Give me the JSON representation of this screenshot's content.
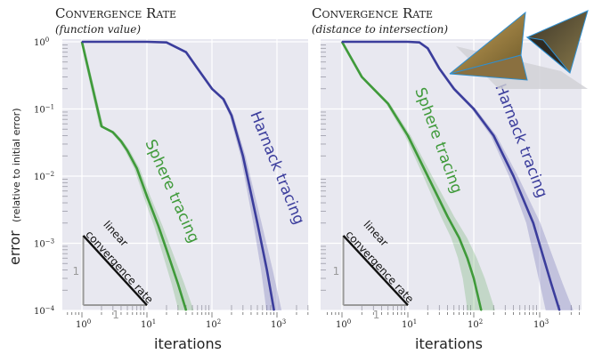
{
  "colors": {
    "background": "#e8e8f0",
    "grid": "#ffffff",
    "harnack": "#3b3d9c",
    "sphere": "#3f9a3a",
    "triangle_side": "#9a9a9a",
    "triangle_hyp": "#111111"
  },
  "ylabel_main": "error",
  "ylabel_sub": "(relative to initial error)",
  "xlabel": "iterations",
  "triangle": {
    "rate_line1": "linear",
    "rate_line2": "convergence rate",
    "side_label": "1"
  },
  "x_ticks": [
    {
      "base": "10",
      "exp": "0"
    },
    {
      "base": "10",
      "exp": "1"
    },
    {
      "base": "10",
      "exp": "2"
    },
    {
      "base": "10",
      "exp": "3"
    }
  ],
  "y_ticks": [
    {
      "base": "10",
      "exp": "0"
    },
    {
      "base": "10",
      "exp": "−1"
    },
    {
      "base": "10",
      "exp": "−2"
    },
    {
      "base": "10",
      "exp": "−3"
    },
    {
      "base": "10",
      "exp": "−4"
    }
  ],
  "inset_icon": "twin-pyramid-shape",
  "chart_data": [
    {
      "type": "line",
      "title": "Convergence Rate",
      "subtitle": "(function value)",
      "xlabel": "iterations",
      "ylabel": "error (relative to initial error)",
      "x_scale": "log",
      "y_scale": "log",
      "xlim": [
        0.5,
        4000
      ],
      "ylim": [
        0.0001,
        1
      ],
      "grid": true,
      "series": [
        {
          "name": "Sphere tracing",
          "x": [
            1,
            2,
            3,
            4,
            5,
            7,
            10,
            15,
            20,
            30,
            40
          ],
          "y": [
            1,
            0.055,
            0.045,
            0.033,
            0.024,
            0.013,
            0.005,
            0.0018,
            0.0008,
            0.00025,
            0.0001
          ]
        },
        {
          "name": "Harnack tracing",
          "x": [
            1,
            10,
            20,
            40,
            60,
            100,
            150,
            200,
            300,
            500,
            700,
            900
          ],
          "y": [
            1,
            1,
            0.98,
            0.7,
            0.4,
            0.2,
            0.14,
            0.08,
            0.02,
            0.002,
            0.0004,
            0.0001
          ]
        }
      ]
    },
    {
      "type": "line",
      "title": "Convergence Rate",
      "subtitle": "(distance to intersection)",
      "xlabel": "iterations",
      "x_scale": "log",
      "y_scale": "log",
      "xlim": [
        0.5,
        4000
      ],
      "ylim": [
        0.0001,
        1
      ],
      "grid": true,
      "series": [
        {
          "name": "Sphere tracing",
          "x": [
            1,
            2,
            3,
            5,
            10,
            20,
            40,
            60,
            80,
            100,
            130
          ],
          "y": [
            1,
            0.3,
            0.2,
            0.12,
            0.04,
            0.01,
            0.0025,
            0.0012,
            0.0006,
            0.0003,
            0.0001
          ]
        },
        {
          "name": "Harnack tracing",
          "x": [
            1,
            10,
            15,
            20,
            30,
            50,
            100,
            200,
            400,
            800,
            1500,
            2000
          ],
          "y": [
            1,
            1,
            0.98,
            0.8,
            0.4,
            0.2,
            0.1,
            0.04,
            0.01,
            0.002,
            0.00025,
            0.0001
          ]
        }
      ]
    }
  ]
}
